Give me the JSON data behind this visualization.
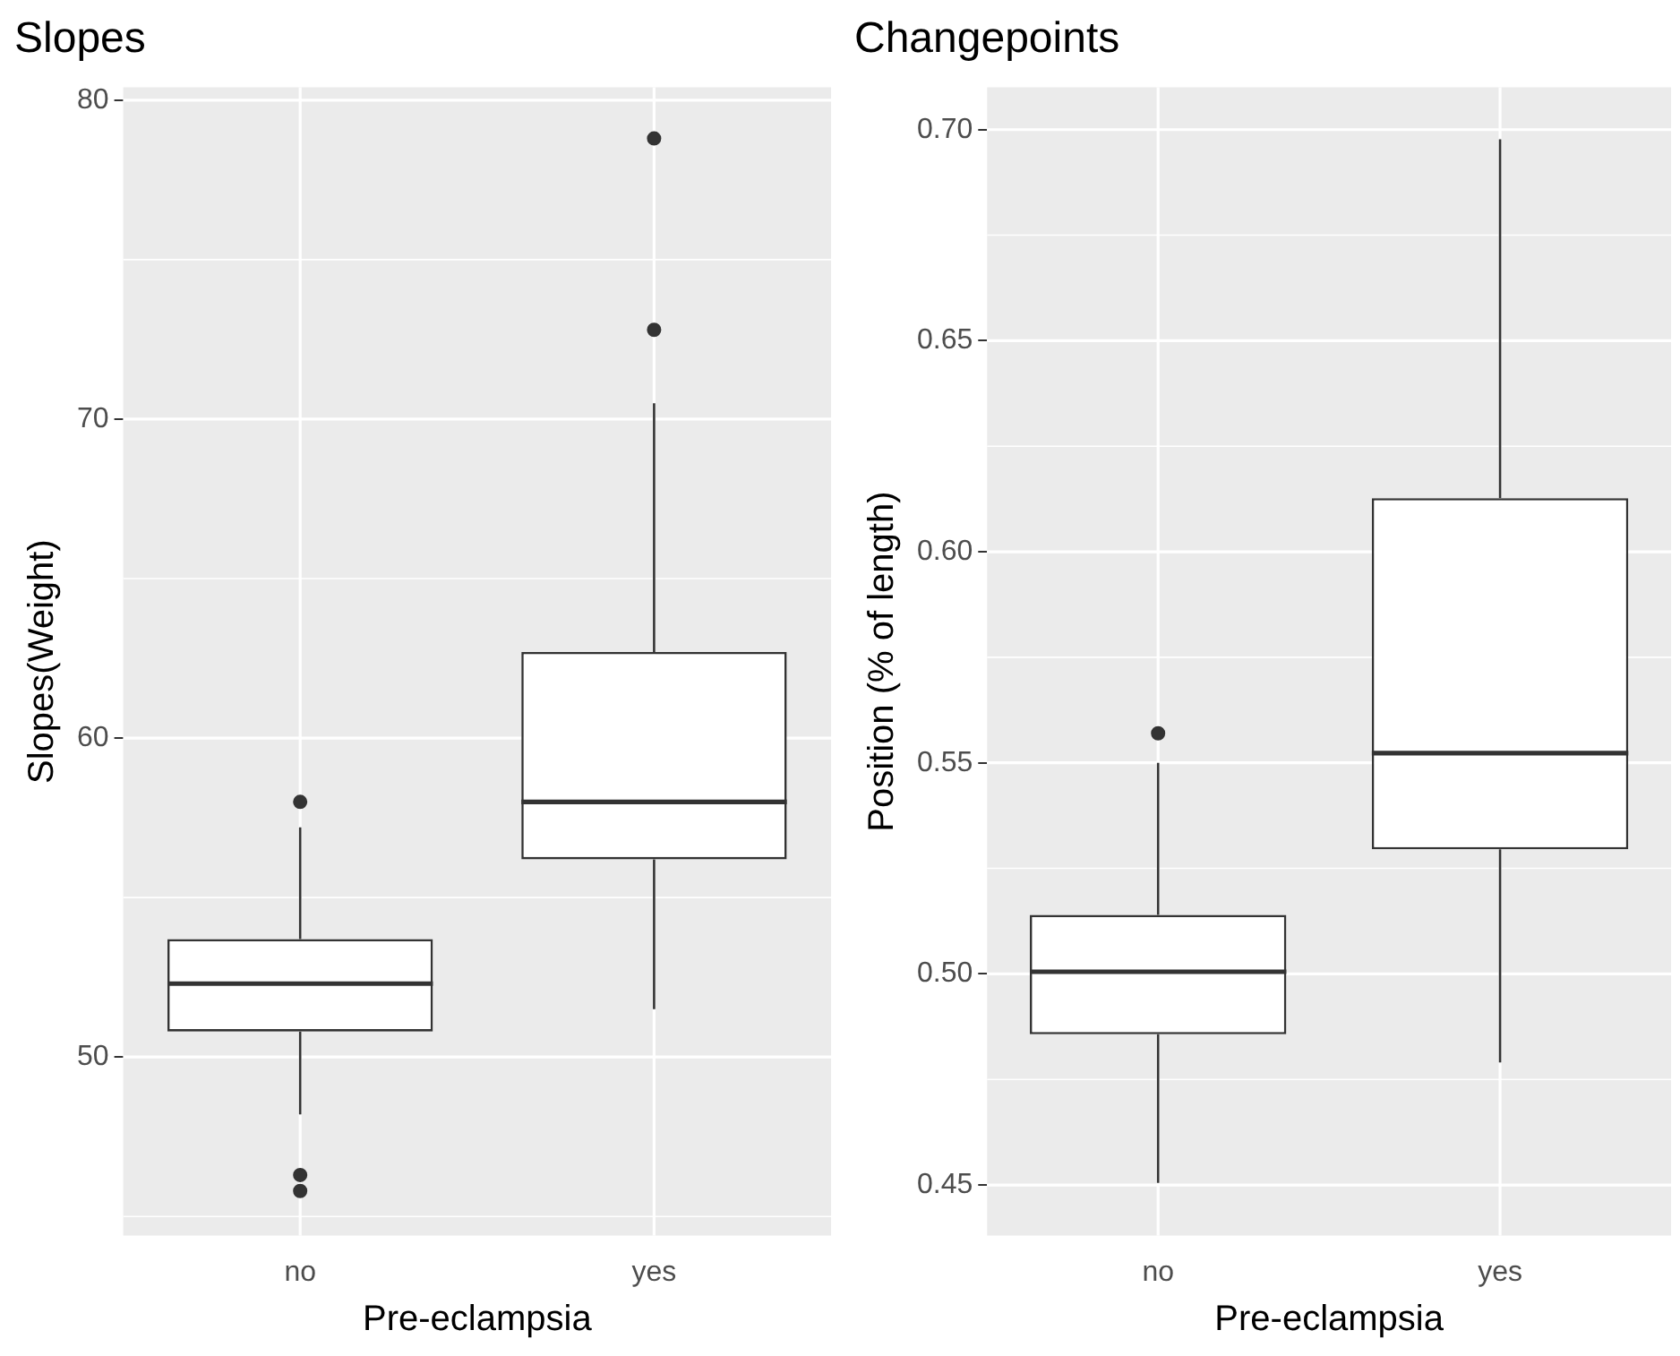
{
  "chart_data": [
    {
      "type": "box",
      "title": "Slopes",
      "xlabel": "Pre-eclampsia",
      "ylabel": "Slopes(Weight)",
      "categories": [
        "no",
        "yes"
      ],
      "boxes": [
        {
          "low": 48.2,
          "q1": 50.8,
          "median": 52.3,
          "q3": 53.7,
          "high": 57.2,
          "outliers": [
            58.0,
            46.3,
            45.8
          ]
        },
        {
          "low": 51.5,
          "q1": 56.2,
          "median": 58.0,
          "q3": 62.7,
          "high": 70.5,
          "outliers": [
            72.8,
            78.8
          ]
        }
      ],
      "ylim": [
        44.4,
        80.4
      ],
      "yticks": [
        50,
        60,
        70,
        80
      ],
      "grid": true
    },
    {
      "type": "box",
      "title": "Changepoints",
      "xlabel": "Pre-eclampsia",
      "ylabel": "Position (% of length)",
      "categories": [
        "no",
        "yes"
      ],
      "boxes": [
        {
          "low": 0.4505,
          "q1": 0.4857,
          "median": 0.5005,
          "q3": 0.514,
          "high": 0.55,
          "outliers": [
            0.557
          ]
        },
        {
          "low": 0.479,
          "q1": 0.5295,
          "median": 0.5523,
          "q3": 0.6127,
          "high": 0.6977
        }
      ],
      "ylim": [
        0.438,
        0.71
      ],
      "yticks": [
        {
          "value": 0.45,
          "label": "0.45"
        },
        {
          "value": 0.5,
          "label": "0.50"
        },
        {
          "value": 0.55,
          "label": "0.55"
        },
        {
          "value": 0.6,
          "label": "0.60"
        },
        {
          "value": 0.65,
          "label": "0.65"
        },
        {
          "value": 0.7,
          "label": "0.70"
        }
      ],
      "grid": true
    }
  ]
}
